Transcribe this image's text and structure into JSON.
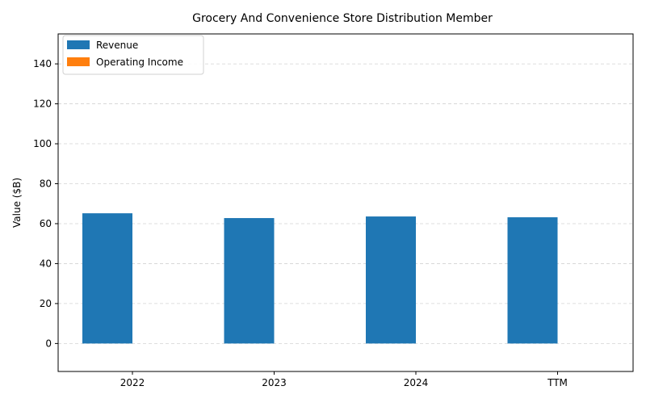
{
  "chart_data": {
    "type": "bar",
    "title": "Grocery And Convenience Store Distribution Member",
    "xlabel": "",
    "ylabel": "Value ($B)",
    "categories": [
      "2022",
      "2023",
      "2024",
      "TTM"
    ],
    "series": [
      {
        "name": "Revenue",
        "values": [
          65.2,
          62.8,
          63.6,
          63.2
        ],
        "color": "#1f77b4"
      },
      {
        "name": "Operating Income",
        "values": [
          0.0,
          0.0,
          0.0,
          0.0
        ],
        "color": "#ff7f0e"
      }
    ],
    "ylim": [
      -14,
      155
    ],
    "yticks": [
      0,
      20,
      40,
      60,
      80,
      100,
      120,
      140
    ],
    "grid": true,
    "legend": "top-left"
  }
}
